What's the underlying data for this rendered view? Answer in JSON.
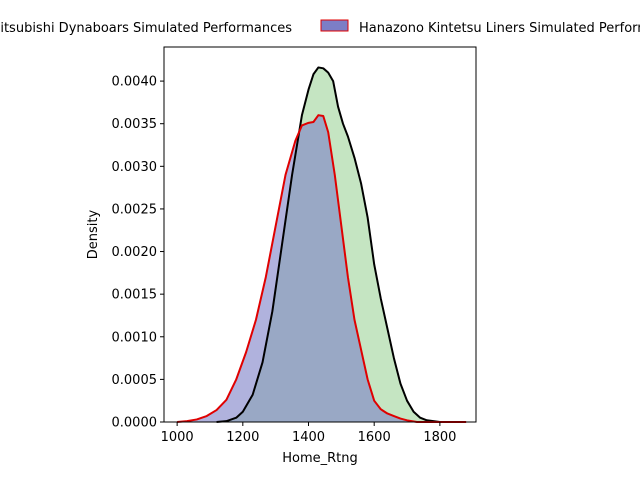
{
  "chart_data": {
    "type": "area",
    "title": "",
    "xlabel": "Home_Rtng",
    "ylabel": "Density",
    "xlim": [
      960,
      1910
    ],
    "ylim": [
      0,
      0.0044
    ],
    "xticks": [
      1000,
      1200,
      1400,
      1600,
      1800
    ],
    "xtick_labels": [
      "1000",
      "1200",
      "1400",
      "1600",
      "1800"
    ],
    "yticks": [
      0,
      0.0005,
      0.001,
      0.0015,
      0.002,
      0.0025,
      0.003,
      0.0035,
      0.004
    ],
    "ytick_labels": [
      "0.0000",
      "0.0005",
      "0.0010",
      "0.0015",
      "0.0020",
      "0.0025",
      "0.0030",
      "0.0035",
      "0.0040"
    ],
    "grid": false,
    "legend_position": "top",
    "series": [
      {
        "name": "Mitsubishi Dynaboars Simulated Performances",
        "fill_color": "#9fd39a",
        "line_color": "#000000",
        "x": [
          1120,
          1150,
          1180,
          1200,
          1230,
          1260,
          1290,
          1320,
          1350,
          1380,
          1400,
          1415,
          1430,
          1445,
          1460,
          1475,
          1490,
          1505,
          1520,
          1540,
          1560,
          1580,
          1600,
          1620,
          1640,
          1660,
          1680,
          1700,
          1720,
          1740,
          1760,
          1780,
          1800,
          1830,
          1860
        ],
        "y": [
          0.0,
          1e-05,
          5e-05,
          0.00012,
          0.00032,
          0.0007,
          0.0013,
          0.0021,
          0.0029,
          0.0036,
          0.0039,
          0.00408,
          0.00416,
          0.00415,
          0.0041,
          0.004,
          0.0037,
          0.0035,
          0.00335,
          0.0031,
          0.0028,
          0.0024,
          0.00185,
          0.00145,
          0.0011,
          0.00075,
          0.00045,
          0.00025,
          0.00012,
          5e-05,
          2e-05,
          1e-05,
          0.0,
          0.0,
          0.0
        ]
      },
      {
        "name": "Hanazono Kintetsu Liners Simulated Performances",
        "fill_color": "#7c7ec6",
        "line_color": "#e00000",
        "x": [
          1000,
          1030,
          1060,
          1090,
          1120,
          1150,
          1180,
          1210,
          1240,
          1270,
          1300,
          1330,
          1360,
          1380,
          1400,
          1415,
          1430,
          1445,
          1460,
          1480,
          1500,
          1520,
          1540,
          1560,
          1580,
          1600,
          1620,
          1640,
          1660,
          1680,
          1700,
          1730,
          1760,
          1800,
          1850,
          1880
        ],
        "y": [
          0.0,
          1e-05,
          3e-05,
          7e-05,
          0.00014,
          0.00026,
          0.0005,
          0.00082,
          0.0012,
          0.0017,
          0.0023,
          0.0029,
          0.0033,
          0.00348,
          0.00351,
          0.00352,
          0.0036,
          0.00359,
          0.0034,
          0.0029,
          0.0023,
          0.0017,
          0.0012,
          0.00085,
          0.0005,
          0.00025,
          0.00015,
          0.0001,
          7e-05,
          4e-05,
          2e-05,
          0.0,
          0.0,
          0.0,
          0.0,
          0.0
        ]
      }
    ]
  }
}
